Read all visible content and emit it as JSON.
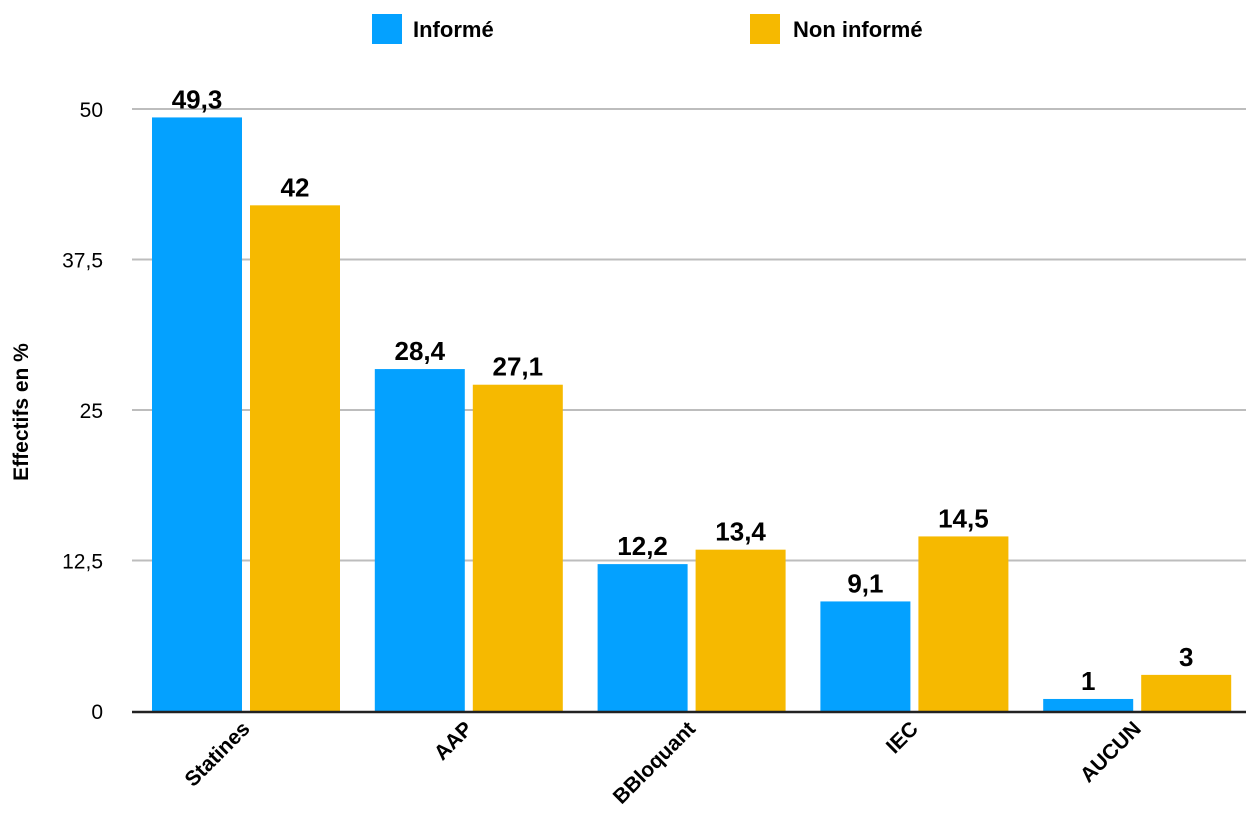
{
  "chart_data": {
    "type": "bar",
    "title": "",
    "xlabel": "",
    "ylabel": "Effectifs en %",
    "ylim": [
      0,
      50
    ],
    "yticks": [
      0,
      12.5,
      25,
      37.5,
      50
    ],
    "ytick_labels": [
      "0",
      "12,5",
      "25",
      "37,5",
      "50"
    ],
    "grid": true,
    "legend_position": "top",
    "categories": [
      "Statines",
      "AAP",
      "BBloquant",
      "IEC",
      "AUCUN"
    ],
    "series": [
      {
        "name": "Informé",
        "color": "#04A1FF",
        "values": [
          49.3,
          28.4,
          12.2,
          9.1,
          1
        ],
        "labels": [
          "49,3",
          "28,4",
          "12,2",
          "9,1",
          "1"
        ]
      },
      {
        "name": "Non informé",
        "color": "#F6B900",
        "values": [
          42,
          27.1,
          13.4,
          14.5,
          3
        ],
        "labels": [
          "42",
          "27,1",
          "13,4",
          "14,5",
          "3"
        ]
      }
    ]
  }
}
